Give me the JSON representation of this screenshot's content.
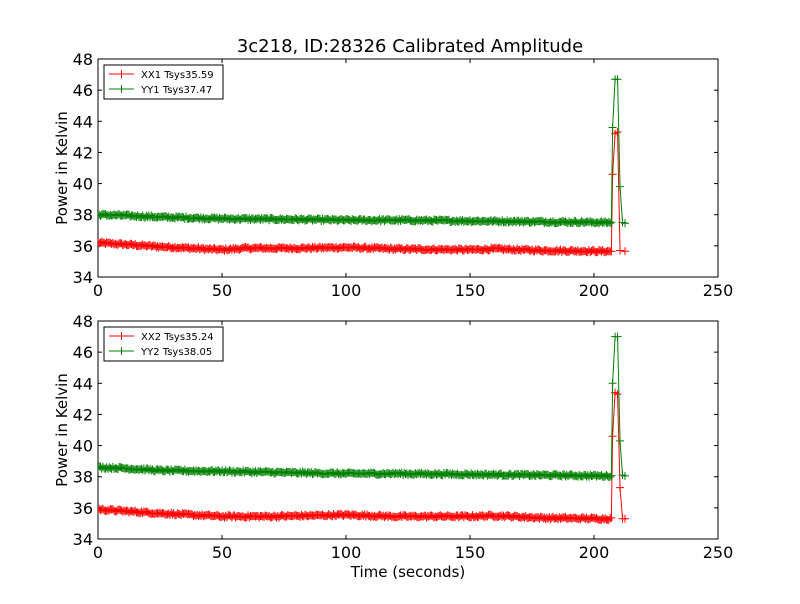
{
  "figure": {
    "title": "3c218, ID:28326 Calibrated Amplitude"
  },
  "chart_data": [
    {
      "type": "line",
      "title": "3c218, ID:28326 Calibrated Amplitude",
      "xlabel": "",
      "ylabel": "Power in Kelvin",
      "xlim": [
        0,
        250
      ],
      "ylim": [
        34,
        48
      ],
      "xticks": [
        0,
        50,
        100,
        150,
        200,
        250
      ],
      "yticks": [
        34,
        36,
        38,
        40,
        42,
        44,
        46,
        48
      ],
      "grid": false,
      "legend": "top-left",
      "series": [
        {
          "name": "XX1 Tsys35.59",
          "color": "#ff0000",
          "marker": "plus",
          "baseline": [
            [
              0,
              36.2
            ],
            [
              10,
              36.1
            ],
            [
              25,
              35.95
            ],
            [
              50,
              35.75
            ],
            [
              60,
              35.85
            ],
            [
              80,
              35.85
            ],
            [
              100,
              35.9
            ],
            [
              120,
              35.8
            ],
            [
              150,
              35.75
            ],
            [
              160,
              35.8
            ],
            [
              180,
              35.7
            ],
            [
              207,
              35.65
            ]
          ],
          "spike": [
            [
              207.5,
              40.6
            ],
            [
              208.5,
              43.2
            ],
            [
              209.5,
              43.3
            ],
            [
              210.5,
              35.7
            ],
            [
              212.5,
              35.65
            ]
          ]
        },
        {
          "name": "YY1 Tsys37.47",
          "color": "#008000",
          "marker": "plus",
          "baseline": [
            [
              0,
              38.0
            ],
            [
              10,
              37.95
            ],
            [
              25,
              37.85
            ],
            [
              50,
              37.75
            ],
            [
              80,
              37.7
            ],
            [
              100,
              37.65
            ],
            [
              120,
              37.65
            ],
            [
              150,
              37.6
            ],
            [
              180,
              37.55
            ],
            [
              207,
              37.5
            ]
          ],
          "spike": [
            [
              207.5,
              43.6
            ],
            [
              208.5,
              46.7
            ],
            [
              209.5,
              46.7
            ],
            [
              210.5,
              39.8
            ],
            [
              211.5,
              37.5
            ],
            [
              212.5,
              37.45
            ]
          ]
        }
      ]
    },
    {
      "type": "line",
      "title": "",
      "xlabel": "Time (seconds)",
      "ylabel": "Power in Kelvin",
      "xlim": [
        0,
        250
      ],
      "ylim": [
        34,
        48
      ],
      "xticks": [
        0,
        50,
        100,
        150,
        200,
        250
      ],
      "yticks": [
        34,
        36,
        38,
        40,
        42,
        44,
        46,
        48
      ],
      "grid": false,
      "legend": "top-left",
      "series": [
        {
          "name": "XX2 Tsys35.24",
          "color": "#ff0000",
          "marker": "plus",
          "baseline": [
            [
              0,
              35.9
            ],
            [
              10,
              35.8
            ],
            [
              25,
              35.65
            ],
            [
              50,
              35.45
            ],
            [
              70,
              35.45
            ],
            [
              100,
              35.55
            ],
            [
              120,
              35.45
            ],
            [
              150,
              35.45
            ],
            [
              160,
              35.5
            ],
            [
              180,
              35.35
            ],
            [
              207,
              35.3
            ]
          ],
          "spike": [
            [
              207.5,
              40.6
            ],
            [
              208.5,
              43.4
            ],
            [
              209.5,
              43.3
            ],
            [
              210.5,
              37.3
            ],
            [
              211.5,
              35.3
            ],
            [
              212.5,
              35.3
            ]
          ]
        },
        {
          "name": "YY2 Tsys38.05",
          "color": "#008000",
          "marker": "plus",
          "baseline": [
            [
              0,
              38.6
            ],
            [
              10,
              38.55
            ],
            [
              25,
              38.4
            ],
            [
              50,
              38.35
            ],
            [
              80,
              38.25
            ],
            [
              100,
              38.2
            ],
            [
              120,
              38.2
            ],
            [
              150,
              38.15
            ],
            [
              180,
              38.1
            ],
            [
              207,
              38.05
            ]
          ],
          "spike": [
            [
              207.5,
              44.0
            ],
            [
              208.5,
              47.0
            ],
            [
              209.5,
              47.0
            ],
            [
              210.5,
              40.3
            ],
            [
              211.5,
              38.1
            ],
            [
              212.5,
              38.05
            ]
          ]
        }
      ]
    }
  ]
}
